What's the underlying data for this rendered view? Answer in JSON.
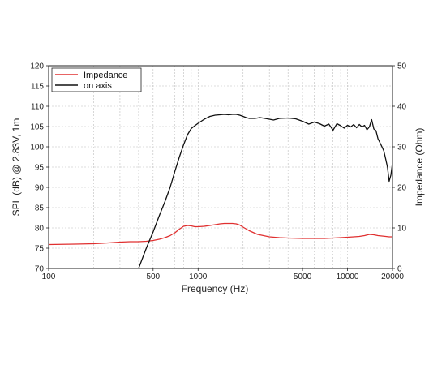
{
  "chart_data": {
    "type": "line",
    "title": "",
    "xlabel": "Frequency (Hz)",
    "ylabel_left": "SPL (dB) @ 2.83V, 1m",
    "ylabel_right": "Impedance (Ohm)",
    "x_scale": "log",
    "xlim": [
      100,
      20000
    ],
    "ylim_left": [
      70,
      120
    ],
    "ylim_right": [
      0,
      50
    ],
    "grid": true,
    "legend_position": "top-left",
    "x_ticks": [
      "100",
      "500",
      "1000",
      "5000",
      "10000",
      "20000"
    ],
    "y_ticks_left": [
      "70",
      "75",
      "80",
      "85",
      "90",
      "95",
      "100",
      "105",
      "110",
      "115",
      "120"
    ],
    "y_ticks_right": [
      "0",
      "10",
      "20",
      "30",
      "40",
      "50"
    ],
    "series": [
      {
        "name": "Impedance",
        "axis": "right",
        "color": "#e03030",
        "x": [
          100,
          150,
          200,
          250,
          300,
          350,
          400,
          450,
          500,
          550,
          600,
          650,
          700,
          750,
          800,
          850,
          900,
          950,
          1000,
          1100,
          1200,
          1300,
          1400,
          1500,
          1600,
          1700,
          1800,
          1900,
          2000,
          2200,
          2500,
          3000,
          3500,
          4000,
          5000,
          6000,
          7000,
          8000,
          9000,
          10000,
          11000,
          12000,
          13000,
          14000,
          15000,
          16000,
          17000,
          18000,
          19000,
          20000
        ],
        "y": [
          5.9,
          6.0,
          6.1,
          6.3,
          6.5,
          6.6,
          6.6,
          6.7,
          6.9,
          7.2,
          7.6,
          8.1,
          8.8,
          9.7,
          10.4,
          10.6,
          10.5,
          10.3,
          10.3,
          10.4,
          10.6,
          10.8,
          11.0,
          11.1,
          11.1,
          11.1,
          11.0,
          10.7,
          10.2,
          9.3,
          8.4,
          7.8,
          7.6,
          7.5,
          7.4,
          7.4,
          7.4,
          7.5,
          7.6,
          7.7,
          7.8,
          7.9,
          8.1,
          8.4,
          8.3,
          8.1,
          8.0,
          7.9,
          7.8,
          7.8
        ]
      },
      {
        "name": "on axis",
        "axis": "left",
        "color": "#111111",
        "x": [
          400,
          450,
          500,
          550,
          600,
          650,
          700,
          750,
          800,
          850,
          900,
          950,
          1000,
          1100,
          1200,
          1300,
          1400,
          1500,
          1600,
          1700,
          1800,
          1900,
          2000,
          2100,
          2200,
          2400,
          2600,
          2800,
          3000,
          3200,
          3500,
          4000,
          4500,
          5000,
          5500,
          6000,
          6500,
          7000,
          7500,
          8000,
          8500,
          9000,
          9500,
          10000,
          10500,
          11000,
          11500,
          12000,
          12500,
          13000,
          13500,
          14000,
          14500,
          15000,
          15500,
          16000,
          16500,
          17000,
          17500,
          18000,
          18500,
          19000,
          19500,
          20000
        ],
        "y": [
          70.0,
          75.0,
          79.0,
          83.0,
          86.5,
          90.0,
          94.0,
          97.5,
          100.5,
          103.0,
          104.5,
          105.2,
          105.8,
          106.8,
          107.5,
          107.8,
          107.9,
          108.0,
          107.9,
          108.0,
          108.0,
          107.8,
          107.5,
          107.2,
          107.0,
          107.0,
          107.2,
          107.0,
          106.8,
          106.6,
          107.0,
          107.1,
          106.9,
          106.3,
          105.6,
          106.1,
          105.7,
          105.1,
          105.6,
          104.1,
          105.7,
          105.2,
          104.6,
          105.3,
          104.9,
          105.5,
          104.7,
          105.5,
          104.9,
          105.3,
          104.2,
          104.9,
          106.7,
          104.4,
          104.0,
          102.0,
          101.0,
          100.0,
          99.0,
          97.0,
          95.0,
          91.5,
          93.0,
          96.0
        ]
      }
    ]
  }
}
